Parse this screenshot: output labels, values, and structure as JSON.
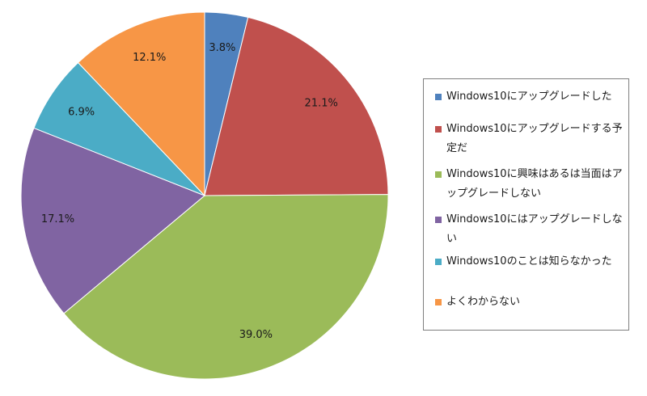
{
  "chart_data": {
    "type": "pie",
    "title": "",
    "slices": [
      {
        "label": "Windows10にアップグレードした",
        "value": 3.8,
        "value_label": "3.8%",
        "color": "#4f81bd"
      },
      {
        "label": "Windows10にアップグレードする予定だ",
        "value": 21.1,
        "value_label": "21.1%",
        "color": "#c0504d"
      },
      {
        "label": "Windows10に興味はあるは当面はアップグレードしない",
        "value": 39.0,
        "value_label": "39.0%",
        "color": "#9bbb59"
      },
      {
        "label": "Windows10にはアップグレードしない",
        "value": 17.1,
        "value_label": "17.1%",
        "color": "#8064a2"
      },
      {
        "label": "Windows10のことは知らなかった",
        "value": 6.9,
        "value_label": "6.9%",
        "color": "#4bacc6"
      },
      {
        "label": "よくわからない",
        "value": 12.1,
        "value_label": "12.1%",
        "color": "#f79646"
      }
    ],
    "start_angle": "12 o'clock",
    "direction": "clockwise",
    "legend_position": "right"
  }
}
